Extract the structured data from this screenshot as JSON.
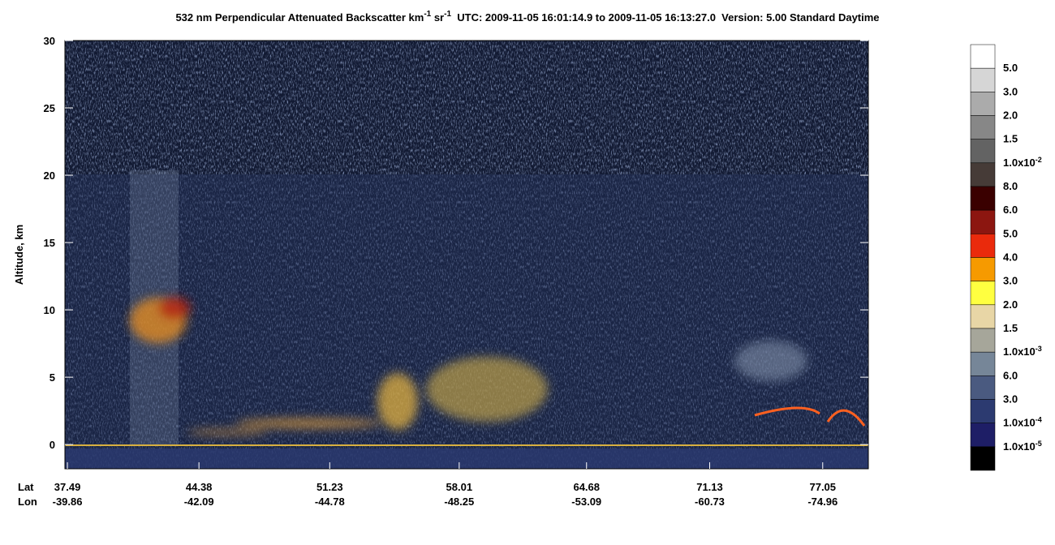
{
  "chart_data": {
    "type": "curtain",
    "title": {
      "part1": "532 nm Perpendicular Attenuated Backscatter km",
      "sup1": "-1",
      "part2": " sr",
      "sup2": "-1",
      "part3": "  UTC: 2009-11-05 16:01:14.9 to 2009-11-05 16:13:27.0  Version: 5.00 Standard Daytime"
    },
    "ylabel": "Altitude, km",
    "ylim": [
      -1.8,
      30
    ],
    "yticks": [
      0,
      5,
      10,
      15,
      20,
      25,
      30
    ],
    "xlim": [
      37.36,
      79.44
    ],
    "xrow_labels": [
      "Lat",
      "Lon"
    ],
    "xticks": [
      37.49,
      44.38,
      51.23,
      58.01,
      64.68,
      71.13,
      77.05
    ],
    "lon_labels": [
      "-39.86",
      "-42.09",
      "-44.78",
      "-48.25",
      "-53.09",
      "-60.73",
      "-74.96"
    ],
    "colorbar": {
      "colors": [
        "#ffffff",
        "#d6d6d6",
        "#ababab",
        "#878787",
        "#636363",
        "#463b37",
        "#3a0000",
        "#8c1610",
        "#ea2a0c",
        "#f69a00",
        "#ffff40",
        "#e8d6a6",
        "#a6a69a",
        "#768698",
        "#4a5a80",
        "#2c3a70",
        "#1e1e66",
        "#000000"
      ],
      "labels": [
        {
          "text": "5.0"
        },
        {
          "text": "3.0"
        },
        {
          "text": "2.0"
        },
        {
          "text": "1.5"
        },
        {
          "text": "1.0x10",
          "sup": "-2"
        },
        {
          "text": "8.0"
        },
        {
          "text": "6.0"
        },
        {
          "text": "5.0"
        },
        {
          "text": "4.0"
        },
        {
          "text": "3.0"
        },
        {
          "text": "2.0"
        },
        {
          "text": "1.5"
        },
        {
          "text": "1.0x10",
          "sup": "-3"
        },
        {
          "text": "6.0"
        },
        {
          "text": "3.0"
        },
        {
          "text": "1.0x10",
          "sup": "-4"
        },
        {
          "text": "1.0x10",
          "sup": "-5"
        }
      ]
    }
  }
}
